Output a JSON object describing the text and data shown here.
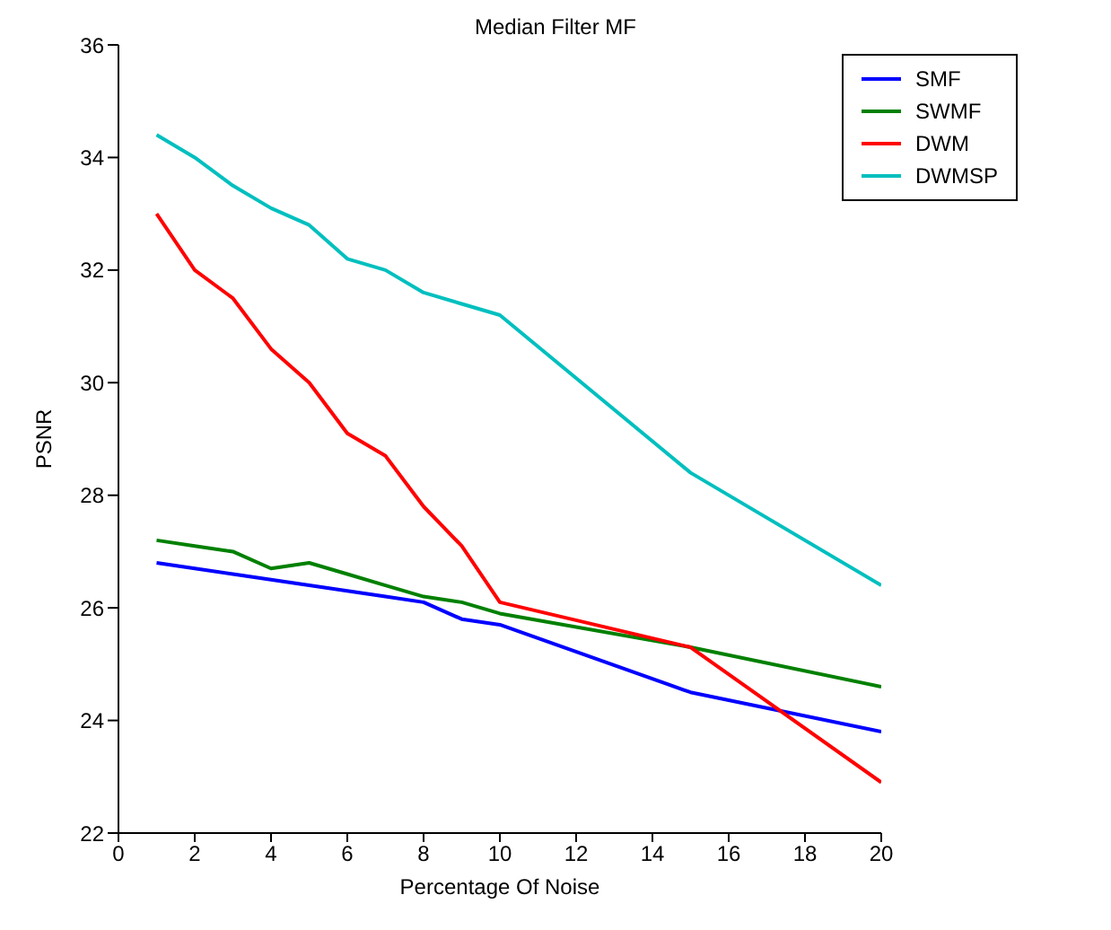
{
  "chart_data": {
    "type": "line",
    "title": "Median Filter MF",
    "xlabel": "Percentage Of Noise",
    "ylabel": "PSNR",
    "x": [
      1,
      2,
      3,
      4,
      5,
      6,
      7,
      8,
      9,
      10,
      15,
      20
    ],
    "series": [
      {
        "name": "SMF",
        "color": "#0000ff",
        "values": [
          26.8,
          26.7,
          26.6,
          26.5,
          26.4,
          26.3,
          26.2,
          26.1,
          25.8,
          25.7,
          24.5,
          23.8
        ]
      },
      {
        "name": "SWMF",
        "color": "#008000",
        "values": [
          27.2,
          27.1,
          27.0,
          26.7,
          26.8,
          26.6,
          26.4,
          26.2,
          26.1,
          25.9,
          25.3,
          24.6
        ]
      },
      {
        "name": "DWM",
        "color": "#ff0000",
        "values": [
          33.0,
          32.0,
          31.5,
          30.6,
          30.0,
          29.1,
          28.7,
          27.8,
          27.1,
          26.1,
          25.3,
          22.9
        ]
      },
      {
        "name": "DWMSP",
        "color": "#00bfbf",
        "values": [
          34.4,
          34.0,
          33.5,
          33.1,
          32.8,
          32.2,
          32.0,
          31.6,
          31.4,
          31.2,
          28.4,
          26.4
        ]
      }
    ],
    "xlim": [
      0,
      20
    ],
    "xticks": [
      0,
      2,
      4,
      6,
      8,
      10,
      12,
      14,
      16,
      18,
      20
    ],
    "ylim": [
      22,
      36
    ],
    "yticks": [
      22,
      24,
      26,
      28,
      30,
      32,
      34,
      36
    ],
    "legend": "top right",
    "marker": "none",
    "line_style": "solid"
  }
}
